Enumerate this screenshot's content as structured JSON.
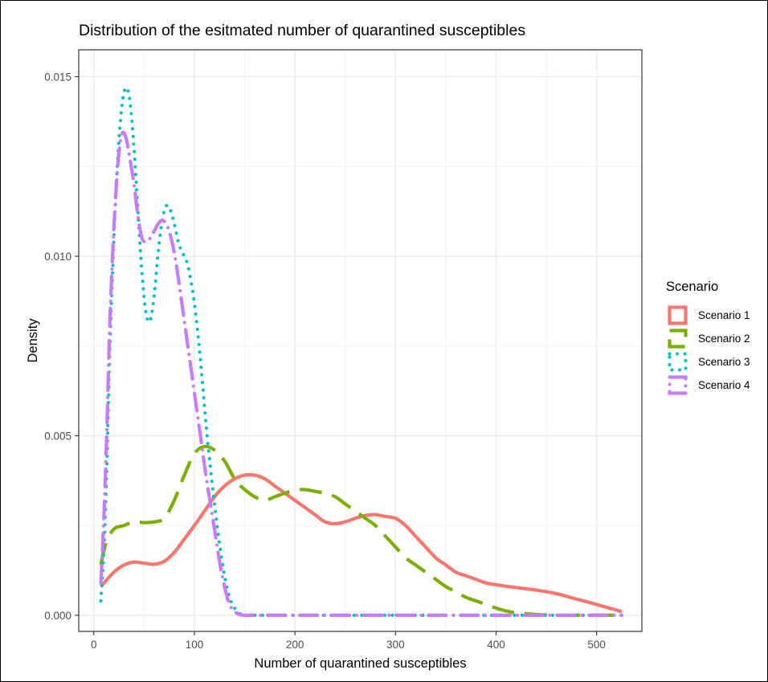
{
  "chart_data": {
    "type": "line",
    "title": "Distribution of the esitmated number of quarantined susceptibles",
    "xlabel": "Number of quarantined susceptibles",
    "ylabel": "Density",
    "xlim": [
      -15,
      545
    ],
    "ylim": [
      -0.00045,
      0.01575
    ],
    "x_ticks": [
      0,
      100,
      200,
      300,
      400,
      500
    ],
    "x_tick_labels": [
      "0",
      "100",
      "200",
      "300",
      "400",
      "500"
    ],
    "y_ticks": [
      0.0,
      0.005,
      0.01,
      0.015
    ],
    "y_tick_labels": [
      "0.000",
      "0.005",
      "0.010",
      "0.015"
    ],
    "grid": true,
    "legend": {
      "title": "Scenario",
      "position": "right"
    },
    "series": [
      {
        "name": "Scenario 1",
        "color": "#F8766D",
        "linetype": "solid",
        "x": [
          7,
          20,
          30,
          40,
          50,
          60,
          70,
          80,
          90,
          100,
          110,
          120,
          130,
          140,
          150,
          160,
          170,
          180,
          190,
          200,
          210,
          220,
          230,
          240,
          250,
          260,
          270,
          280,
          290,
          300,
          310,
          320,
          330,
          340,
          350,
          360,
          370,
          380,
          390,
          400,
          420,
          440,
          460,
          480,
          500,
          525
        ],
        "y": [
          0.0008,
          0.0012,
          0.0014,
          0.00148,
          0.00145,
          0.00142,
          0.0015,
          0.00175,
          0.00212,
          0.0025,
          0.0029,
          0.0033,
          0.0036,
          0.0038,
          0.0039,
          0.0039,
          0.0038,
          0.0036,
          0.0034,
          0.0032,
          0.003,
          0.0028,
          0.0026,
          0.00255,
          0.0026,
          0.0027,
          0.00278,
          0.0028,
          0.00275,
          0.0027,
          0.0025,
          0.0022,
          0.0019,
          0.0016,
          0.0014,
          0.0012,
          0.0011,
          0.001,
          0.0009,
          0.00085,
          0.00077,
          0.0007,
          0.0006,
          0.00045,
          0.0003,
          0.0001
        ]
      },
      {
        "name": "Scenario 2",
        "color": "#7CAE00",
        "linetype": "dashed",
        "x": [
          7,
          12,
          20,
          30,
          40,
          50,
          60,
          70,
          80,
          90,
          100,
          110,
          120,
          130,
          140,
          150,
          160,
          170,
          180,
          190,
          200,
          210,
          220,
          230,
          240,
          250,
          260,
          270,
          280,
          290,
          300,
          310,
          320,
          330,
          340,
          350,
          360,
          370,
          380,
          390,
          400,
          410,
          420,
          440,
          460,
          480,
          500,
          525
        ],
        "y": [
          0.0014,
          0.002,
          0.0024,
          0.0025,
          0.0026,
          0.00258,
          0.0026,
          0.0027,
          0.0032,
          0.0039,
          0.0045,
          0.0047,
          0.0046,
          0.0043,
          0.0038,
          0.0035,
          0.0033,
          0.0032,
          0.0033,
          0.0034,
          0.00348,
          0.0035,
          0.00345,
          0.0034,
          0.0033,
          0.0031,
          0.0029,
          0.0027,
          0.0025,
          0.0022,
          0.0019,
          0.0016,
          0.0014,
          0.0012,
          0.001,
          0.0008,
          0.00065,
          0.0005,
          0.0004,
          0.0003,
          0.0002,
          0.00012,
          7e-05,
          2e-05,
          0.0,
          0.0,
          0.0,
          0.0
        ]
      },
      {
        "name": "Scenario 3",
        "color": "#00BFC4",
        "linetype": "dotted",
        "x": [
          7,
          10,
          13,
          16,
          20,
          24,
          28,
          32,
          36,
          40,
          44,
          48,
          52,
          56,
          60,
          64,
          68,
          72,
          76,
          80,
          84,
          88,
          92,
          96,
          100,
          104,
          108,
          112,
          116,
          120,
          125,
          130,
          135,
          140,
          145,
          150,
          155,
          160,
          200,
          300,
          400,
          500,
          525
        ],
        "y": [
          0.0004,
          0.0018,
          0.0042,
          0.0075,
          0.0105,
          0.0128,
          0.0142,
          0.0147,
          0.0143,
          0.013,
          0.0112,
          0.0095,
          0.0084,
          0.0082,
          0.0089,
          0.0101,
          0.011,
          0.0114,
          0.0113,
          0.0109,
          0.0104,
          0.0101,
          0.0099,
          0.0094,
          0.0087,
          0.0077,
          0.0065,
          0.0052,
          0.0041,
          0.0031,
          0.002,
          0.0011,
          0.0005,
          0.0002,
          5e-05,
          1e-05,
          0.0,
          0.0,
          0.0,
          0.0,
          0.0,
          0.0,
          0.0
        ]
      },
      {
        "name": "Scenario 4",
        "color": "#C77CFF",
        "linetype": "longdash-dot",
        "x": [
          7,
          10,
          13,
          16,
          20,
          24,
          28,
          32,
          36,
          40,
          44,
          48,
          52,
          56,
          60,
          64,
          68,
          72,
          76,
          80,
          84,
          88,
          92,
          96,
          100,
          104,
          108,
          112,
          116,
          120,
          125,
          130,
          135,
          140,
          145,
          150,
          160,
          200,
          300,
          400,
          500,
          525
        ],
        "y": [
          0.0009,
          0.0027,
          0.0052,
          0.0082,
          0.0108,
          0.0126,
          0.0134,
          0.0133,
          0.0127,
          0.012,
          0.0111,
          0.0105,
          0.0104,
          0.0105,
          0.0107,
          0.0109,
          0.011,
          0.0109,
          0.0106,
          0.0101,
          0.0094,
          0.0086,
          0.0078,
          0.007,
          0.0062,
          0.0054,
          0.0046,
          0.0038,
          0.0031,
          0.0024,
          0.0015,
          0.0008,
          0.0003,
          0.0001,
          2e-05,
          0.0,
          0.0,
          0.0,
          0.0,
          0.0,
          0.0,
          0.0
        ]
      }
    ]
  }
}
